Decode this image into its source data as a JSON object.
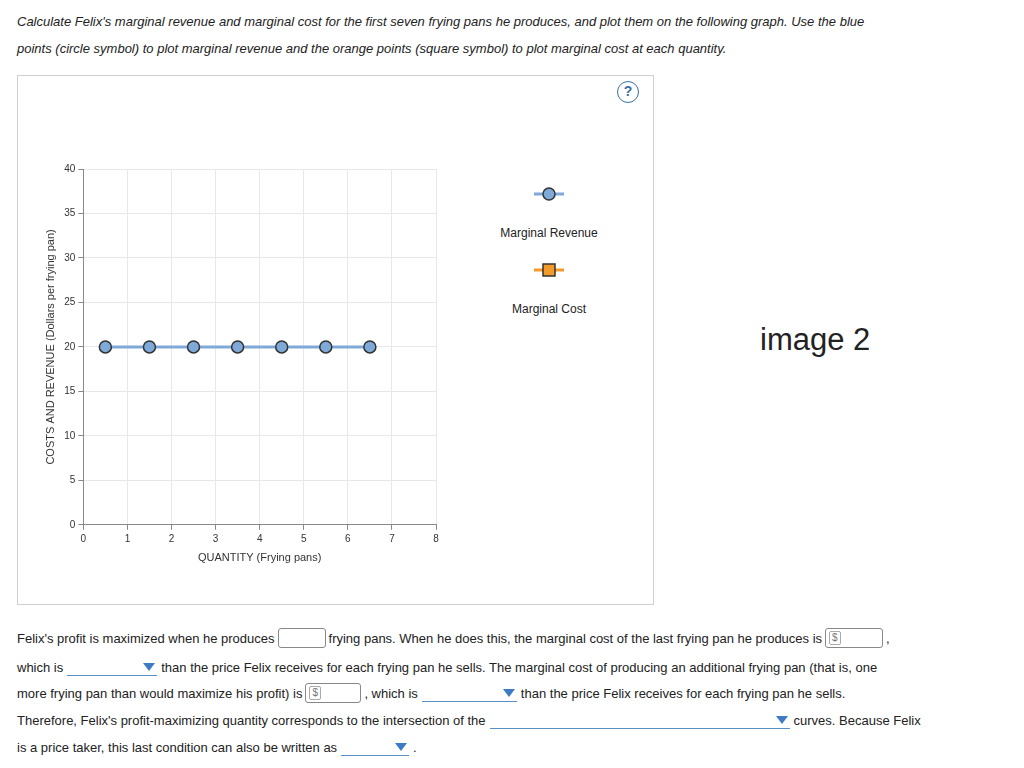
{
  "instructions": [
    "Calculate Felix's marginal revenue and marginal cost for the first seven frying pans he produces, and plot them on the following graph. Use the blue",
    "points (circle symbol) to plot marginal revenue and the orange points (square symbol) to plot marginal cost at each quantity."
  ],
  "help_icon": "?",
  "chart_data": {
    "type": "line",
    "xlabel": "QUANTITY (Frying pans)",
    "ylabel": "COSTS AND REVENUE (Dollars per frying pan)",
    "x": [
      0.5,
      1.5,
      2.5,
      3.5,
      4.5,
      5.5,
      6.5
    ],
    "series": [
      {
        "name": "Marginal Revenue",
        "color": "#7fa9d8",
        "marker": "circle",
        "values": [
          20,
          20,
          20,
          20,
          20,
          20,
          20
        ]
      },
      {
        "name": "Marginal Cost",
        "color": "#f39a2b",
        "marker": "square",
        "values": [
          null,
          null,
          null,
          null,
          null,
          null,
          null
        ]
      }
    ],
    "xlim": [
      0,
      8
    ],
    "xticks": [
      0,
      1,
      2,
      3,
      4,
      5,
      6,
      7,
      8
    ],
    "ylim": [
      0,
      40
    ],
    "yticks": [
      0,
      5,
      10,
      15,
      20,
      25,
      30,
      35,
      40
    ],
    "grid": true,
    "legend": "right"
  },
  "watermark": "image 2",
  "question": {
    "lines": [
      [
        {
          "text": "Felix's profit is maximized when he produces"
        },
        {
          "field": "input"
        },
        {
          "text": "frying pans. When he does this, the marginal cost of the last frying pan he produces is"
        },
        {
          "field": "input",
          "prefix": "$"
        },
        {
          "text": ","
        }
      ],
      [
        {
          "text": "which is"
        },
        {
          "field": "select"
        },
        {
          "text": "than the price Felix receives for each frying pan he sells. The marginal cost of producing an additional frying pan (that is, one"
        }
      ],
      [
        {
          "text": "more frying pan than would maximize his profit) is"
        },
        {
          "field": "input",
          "prefix": "$"
        },
        {
          "text": ", which is"
        },
        {
          "field": "select"
        },
        {
          "text": "than the price Felix receives for each frying pan he sells."
        }
      ],
      [
        {
          "text": "Therefore, Felix's profit-maximizing quantity corresponds to the intersection of the"
        },
        {
          "field": "select"
        },
        {
          "text": "curves. Because Felix"
        }
      ],
      [
        {
          "text": "is a price taker, this last condition can also be written as"
        },
        {
          "field": "select"
        },
        {
          "text": "."
        }
      ]
    ]
  }
}
